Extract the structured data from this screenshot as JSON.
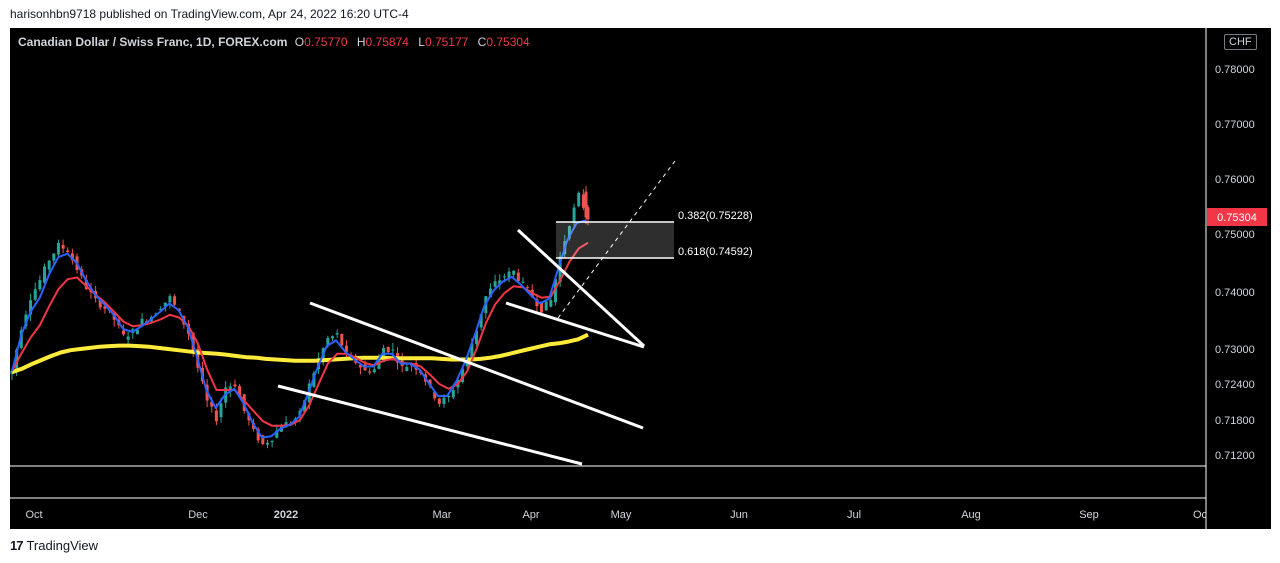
{
  "header": {
    "published": "harisonhbn9718 published on TradingView.com, Apr 24, 2022 16:20 UTC-4"
  },
  "legend": {
    "symbol": "Canadian Dollar / Swiss Franc, 1D, FOREX.com",
    "o_label": "O",
    "o_value": "0.75770",
    "h_label": "H",
    "h_value": "0.75874",
    "l_label": "L",
    "l_value": "0.75177",
    "c_label": "C",
    "c_value": "0.75304"
  },
  "currency_button": "CHF",
  "footer": {
    "brand": "TradingView",
    "logo_mark": "17"
  },
  "colors": {
    "up": "#26a69a",
    "down": "#ef5350",
    "ma_fast": "#2962ff",
    "ma_slow": "#f23645",
    "ma_long": "#ffeb3b",
    "background": "#000000",
    "price_label": "#f23645"
  },
  "chart_data": {
    "type": "candlestick",
    "symbol": "CADCHF",
    "timeframe": "1D",
    "y_ticks": [
      "0.78000",
      "0.77000",
      "0.76000",
      "0.75000",
      "0.74000",
      "0.73000",
      "0.72400",
      "0.71800",
      "0.71200"
    ],
    "x_ticks": [
      "Oct",
      "Dec",
      "2022",
      "Mar",
      "Apr",
      "May",
      "Jun",
      "Jul",
      "Aug",
      "Sep",
      "Oc"
    ],
    "last_price": "0.75304",
    "fib_levels": [
      {
        "label": "0.382(0.75228)",
        "value": 0.75228
      },
      {
        "label": "0.618(0.74592)",
        "value": 0.74592
      }
    ],
    "close_path": [
      0.7262,
      0.7338,
      0.7391,
      0.742,
      0.7456,
      0.748,
      0.7472,
      0.744,
      0.7408,
      0.7385,
      0.7372,
      0.7352,
      0.7322,
      0.733,
      0.7349,
      0.7358,
      0.7375,
      0.739,
      0.7362,
      0.7328,
      0.7268,
      0.721,
      0.7183,
      0.7235,
      0.724,
      0.7195,
      0.716,
      0.7138,
      0.715,
      0.7172,
      0.7175,
      0.719,
      0.7238,
      0.7283,
      0.7318,
      0.7325,
      0.729,
      0.7278,
      0.7262,
      0.7265,
      0.7302,
      0.7297,
      0.7268,
      0.7275,
      0.7262,
      0.7232,
      0.7209,
      0.7218,
      0.7248,
      0.7285,
      0.7335,
      0.7392,
      0.7415,
      0.7428,
      0.7435,
      0.7412,
      0.7392,
      0.737,
      0.7385,
      0.746,
      0.752,
      0.757,
      0.753
    ],
    "ma_fast": [
      0.7262,
      0.7325,
      0.7365,
      0.739,
      0.743,
      0.746,
      0.7466,
      0.745,
      0.742,
      0.7395,
      0.7378,
      0.736,
      0.7335,
      0.733,
      0.734,
      0.7352,
      0.7365,
      0.738,
      0.7368,
      0.7338,
      0.7285,
      0.723,
      0.72,
      0.7222,
      0.7232,
      0.7208,
      0.7175,
      0.715,
      0.7152,
      0.7165,
      0.7172,
      0.7185,
      0.7225,
      0.7268,
      0.7305,
      0.7315,
      0.7295,
      0.7282,
      0.727,
      0.727,
      0.7292,
      0.7292,
      0.7275,
      0.7275,
      0.7265,
      0.7242,
      0.722,
      0.722,
      0.7245,
      0.728,
      0.7325,
      0.7375,
      0.7402,
      0.7418,
      0.7426,
      0.7412,
      0.7395,
      0.738,
      0.7388,
      0.744,
      0.749,
      0.752,
      0.7525
    ],
    "ma_slow": [
      0.7262,
      0.7292,
      0.732,
      0.7342,
      0.7375,
      0.7405,
      0.7422,
      0.7425,
      0.741,
      0.7395,
      0.7382,
      0.7365,
      0.7348,
      0.734,
      0.7342,
      0.7346,
      0.7352,
      0.736,
      0.7355,
      0.734,
      0.731,
      0.7265,
      0.723,
      0.723,
      0.723,
      0.7212,
      0.7195,
      0.7178,
      0.717,
      0.717,
      0.7172,
      0.718,
      0.7205,
      0.724,
      0.7275,
      0.7292,
      0.7292,
      0.7285,
      0.7276,
      0.7272,
      0.728,
      0.7283,
      0.7276,
      0.7275,
      0.727,
      0.7256,
      0.724,
      0.7232,
      0.724,
      0.7262,
      0.73,
      0.7345,
      0.7378,
      0.7398,
      0.741,
      0.7408,
      0.7398,
      0.739,
      0.7392,
      0.742,
      0.7452,
      0.7475,
      0.7485
    ],
    "ma_long": [
      0.726,
      0.7266,
      0.7274,
      0.7281,
      0.7288,
      0.7294,
      0.7298,
      0.73,
      0.7302,
      0.7304,
      0.7305,
      0.7306,
      0.7306,
      0.7305,
      0.7304,
      0.7302,
      0.73,
      0.7298,
      0.7296,
      0.7294,
      0.7293,
      0.7292,
      0.729,
      0.7288,
      0.7286,
      0.7285,
      0.7283,
      0.7282,
      0.7281,
      0.728,
      0.728,
      0.728,
      0.7281,
      0.7282,
      0.7283,
      0.7284,
      0.7285,
      0.7285,
      0.7285,
      0.7284,
      0.7284,
      0.7284,
      0.7284,
      0.7284,
      0.7283,
      0.7282,
      0.7282,
      0.7282,
      0.7283,
      0.7285,
      0.7288,
      0.7292,
      0.7296,
      0.73,
      0.7304,
      0.7308,
      0.731,
      0.7313,
      0.7317,
      0.7325
    ]
  }
}
